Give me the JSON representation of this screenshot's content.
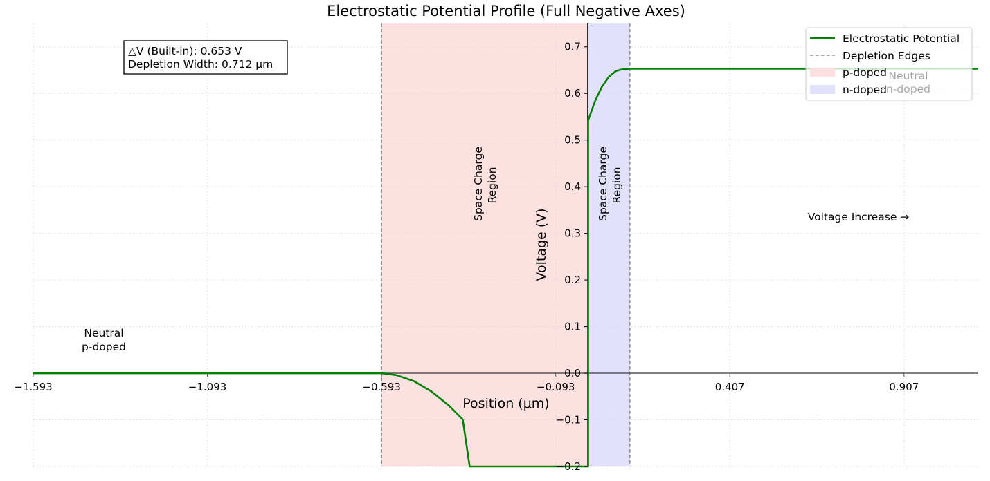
{
  "chart_data": {
    "type": "line",
    "title": "Electrostatic Potential Profile (Full Negative Axes)",
    "xlabel": "Position (μm)",
    "ylabel": "Voltage (V)",
    "xlim": [
      -1.593,
      1.12
    ],
    "ylim": [
      -0.2,
      0.75
    ],
    "xticks": [
      -1.593,
      -1.093,
      -0.593,
      -0.093,
      0.407,
      0.907
    ],
    "xtick_labels": [
      "−1.593",
      "−1.093",
      "−0.593",
      "−0.093",
      "0.407",
      "0.907"
    ],
    "yticks": [
      -0.2,
      -0.1,
      0.0,
      0.1,
      0.2,
      0.3,
      0.4,
      0.5,
      0.6,
      0.7
    ],
    "ytick_labels": [
      "−0.2",
      "−0.1",
      "0.0",
      "0.1",
      "0.2",
      "0.3",
      "0.4",
      "0.5",
      "0.6",
      "0.7"
    ],
    "grid": true,
    "legend_location": "top-right",
    "series": [
      {
        "name": "Electrostatic Potential",
        "color": "#008000",
        "x": [
          -1.593,
          -0.593,
          -0.55,
          -0.5,
          -0.45,
          -0.4,
          -0.36,
          -0.34,
          0.0,
          0.0,
          0.02,
          0.04,
          0.06,
          0.08,
          0.1,
          0.12,
          1.12
        ],
        "y": [
          0.0,
          0.0,
          -0.004,
          -0.017,
          -0.039,
          -0.069,
          -0.099,
          -0.2,
          -0.2,
          0.542,
          0.584,
          0.615,
          0.636,
          0.648,
          0.652,
          0.653,
          0.653
        ]
      }
    ],
    "depletion_edges": [
      -0.593,
      0.12
    ],
    "regions": [
      {
        "name": "p-doped",
        "x_from": -0.593,
        "x_to": 0.0,
        "color": "#fde0e0"
      },
      {
        "name": "n-doped",
        "x_from": 0.0,
        "x_to": 0.12,
        "color": "#e1e1fb"
      }
    ],
    "legend": [
      {
        "label": "Electrostatic Potential",
        "kind": "line",
        "color": "#008000"
      },
      {
        "label": "Depletion Edges",
        "kind": "dashed",
        "color": "#808080"
      },
      {
        "label": "p-doped",
        "kind": "patch",
        "color": "#fde0e0"
      },
      {
        "label": "n-doped",
        "kind": "patch",
        "color": "#e1e1fb"
      }
    ],
    "info_box": {
      "lines": [
        "△V (Built-in): 0.653 V",
        "Depletion Width: 0.712 μm"
      ]
    },
    "annotations": {
      "neutral_p": [
        "Neutral",
        "p-doped"
      ],
      "neutral_n": [
        "Neutral",
        "n-doped"
      ],
      "space_charge_p": [
        "Space Charge",
        "Region"
      ],
      "space_charge_n": [
        "Space Charge",
        "Region"
      ],
      "voltage_increase": "Voltage Increase →"
    }
  }
}
